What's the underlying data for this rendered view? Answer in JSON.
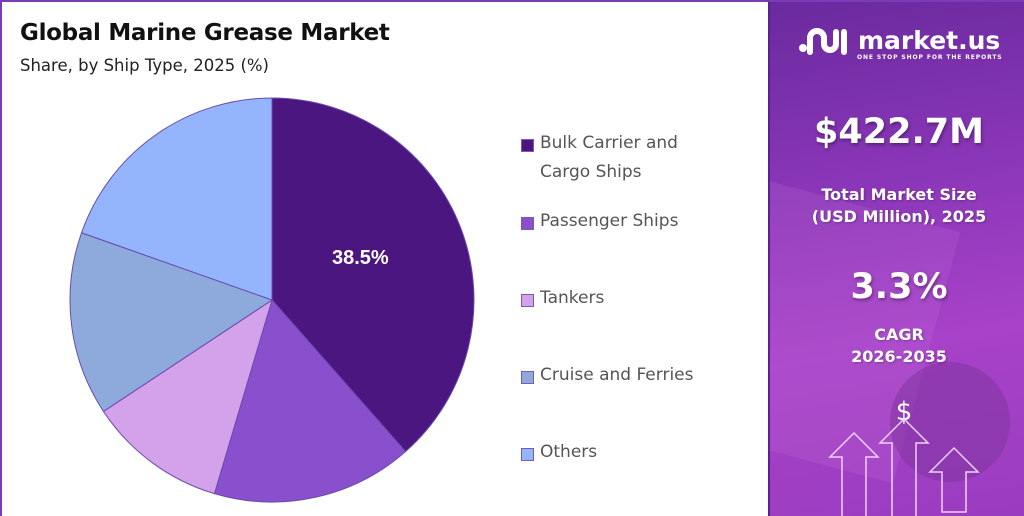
{
  "header": {
    "title": "Global Marine Grease Market",
    "subtitle": "Share, by Ship Type, 2025 (%)"
  },
  "pie": {
    "highlight_label": "38.5%"
  },
  "legend": {
    "items": [
      {
        "label_line1": "Bulk Carrier and",
        "label_line2": "Cargo Ships",
        "color": "#4b1680"
      },
      {
        "label_line1": "Passenger Ships",
        "label_line2": "",
        "color": "#8a4fcc"
      },
      {
        "label_line1": "Tankers",
        "label_line2": "",
        "color": "#d4a2ea"
      },
      {
        "label_line1": "Cruise and Ferries",
        "label_line2": "",
        "color": "#8ea9dc"
      },
      {
        "label_line1": "Others",
        "label_line2": "",
        "color": "#94b4fb"
      }
    ]
  },
  "brand": {
    "name": "market.us",
    "tagline": "ONE STOP SHOP FOR THE REPORTS"
  },
  "kpis": {
    "market_size_value": "$422.7M",
    "market_size_label_line1": "Total Market Size",
    "market_size_label_line2": "(USD Million), 2025",
    "cagr_value": "3.3%",
    "cagr_label_line1": "CAGR",
    "cagr_label_line2": "2026-2035"
  },
  "decor": {
    "dollar_symbol": "$"
  },
  "chart_data": {
    "type": "pie",
    "title": "Global Marine Grease Market",
    "subtitle": "Share, by Ship Type, 2025 (%)",
    "categories": [
      "Bulk Carrier and Cargo Ships",
      "Passenger Ships",
      "Tankers",
      "Cruise and Ferries",
      "Others"
    ],
    "values": [
      38.5,
      16.1,
      11.1,
      14.7,
      19.6
    ],
    "colors": [
      "#4b1680",
      "#8a4fcc",
      "#d4a2ea",
      "#8ea9dc",
      "#94b4fb"
    ],
    "data_labels": [
      {
        "category": "Bulk Carrier and Cargo Ships",
        "text": "38.5%"
      }
    ],
    "start_angle": "12 o'clock, clockwise",
    "legend_position": "right"
  }
}
